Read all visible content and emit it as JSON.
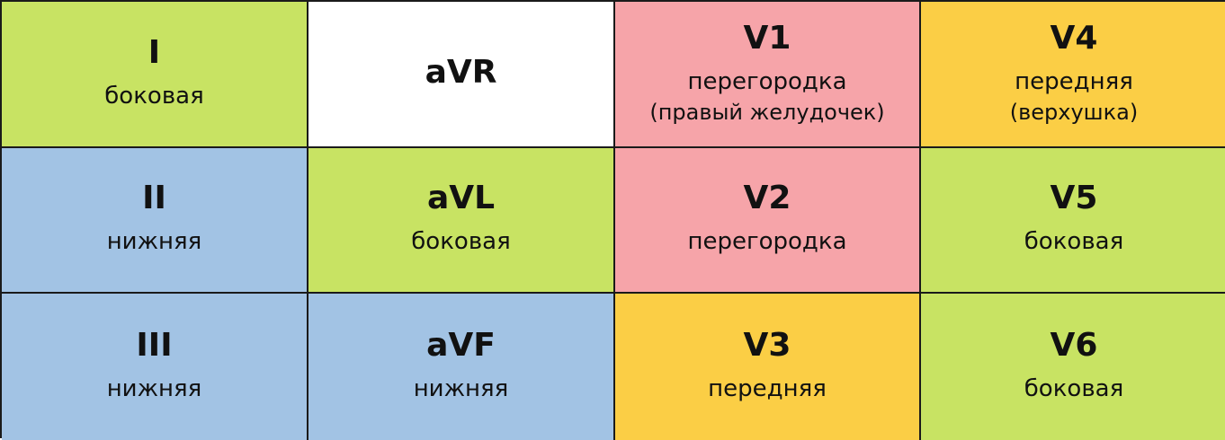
{
  "colors": {
    "lateral": "#c8e363",
    "inferior": "#a2c3e4",
    "septal": "#f6a4a9",
    "anterior": "#fbce45",
    "none": "#ffffff"
  },
  "cells": [
    {
      "lead": "I",
      "region": "боковая",
      "sub": "",
      "color": "#c8e363"
    },
    {
      "lead": "aVR",
      "region": "",
      "sub": "",
      "color": "#ffffff"
    },
    {
      "lead": "V1",
      "region": "перегородка",
      "sub": "(правый желудочек)",
      "color": "#f6a4a9"
    },
    {
      "lead": "V4",
      "region": "передняя",
      "sub": "(верхушка)",
      "color": "#fbce45"
    },
    {
      "lead": "II",
      "region": "нижняя",
      "sub": "",
      "color": "#a2c3e4"
    },
    {
      "lead": "aVL",
      "region": "боковая",
      "sub": "",
      "color": "#c8e363"
    },
    {
      "lead": "V2",
      "region": "перегородка",
      "sub": "",
      "color": "#f6a4a9"
    },
    {
      "lead": "V5",
      "region": "боковая",
      "sub": "",
      "color": "#c8e363"
    },
    {
      "lead": "III",
      "region": "нижняя",
      "sub": "",
      "color": "#a2c3e4"
    },
    {
      "lead": "aVF",
      "region": "нижняя",
      "sub": "",
      "color": "#a2c3e4"
    },
    {
      "lead": "V3",
      "region": "передняя",
      "sub": "",
      "color": "#fbce45"
    },
    {
      "lead": "V6",
      "region": "боковая",
      "sub": "",
      "color": "#c8e363"
    }
  ]
}
